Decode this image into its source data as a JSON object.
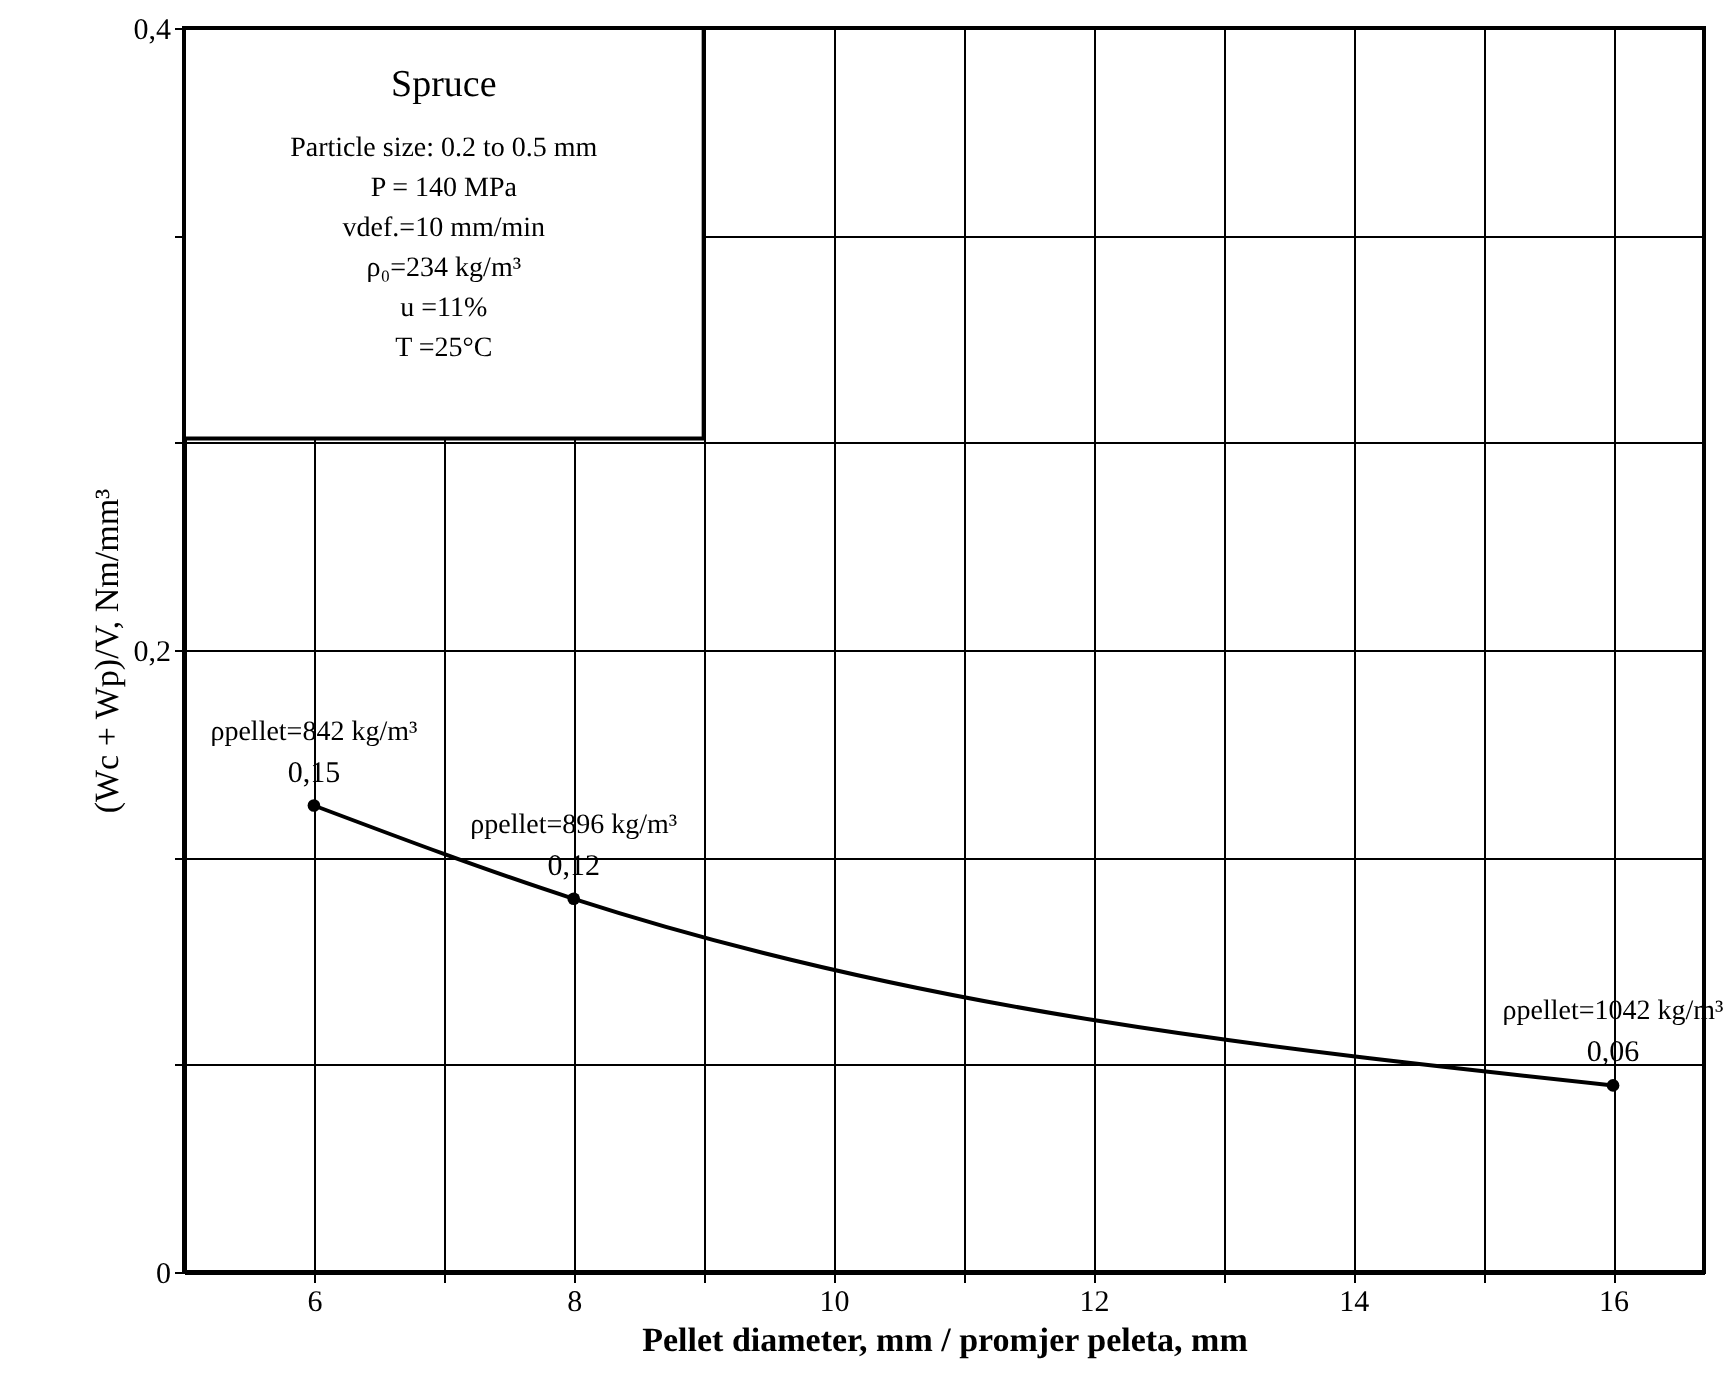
{
  "chart_data": {
    "type": "line",
    "xlabel": "Pellet diameter, mm / promjer peleta, mm",
    "ylabel": "(Wc + Wp)/V, Nm/mm³",
    "x": [
      6,
      8,
      16
    ],
    "series": [
      {
        "color": "#000000",
        "values": [
          0.15,
          0.12,
          0.06
        ],
        "value_labels": [
          "0,15",
          "0,12",
          "0,06"
        ]
      }
    ],
    "xlim": [
      5,
      16.7
    ],
    "xticks": [
      6,
      {
        "value": 7,
        "label": null
      },
      8,
      {
        "value": 9,
        "label": null
      },
      10,
      {
        "value": 11,
        "label": null
      },
      12,
      {
        "value": 13,
        "label": null
      },
      14,
      {
        "value": 15,
        "label": null
      },
      16
    ],
    "ylim": [
      0,
      0.4
    ],
    "yticks": [
      {
        "value": 0,
        "label": "0"
      },
      {
        "value": 0.0667,
        "label": null
      },
      {
        "value": 0.1333,
        "label": null
      },
      {
        "value": 0.2,
        "label": "0,2"
      },
      {
        "value": 0.2667,
        "label": null
      },
      {
        "value": 0.3333,
        "label": null
      },
      {
        "value": 0.4,
        "label": "0,4"
      }
    ],
    "grid": true,
    "marker": "circle",
    "line_style": "solid",
    "annotations": [
      {
        "text": "ρpellet=842 kg/m³",
        "x": 6,
        "y": 0.15
      },
      {
        "text": "ρpellet=896 kg/m³",
        "x": 8,
        "y": 0.12
      },
      {
        "text": "ρpellet=1042 kg/m³",
        "x": 16,
        "y": 0.06
      },
      "Spruce",
      "Particle size: 0.2 to 0.5 mm",
      "P = 140 MPa",
      "vdef.=10 mm/min",
      "ρ₀=234 kg/m³",
      "u =11%",
      "T =25°C"
    ]
  }
}
